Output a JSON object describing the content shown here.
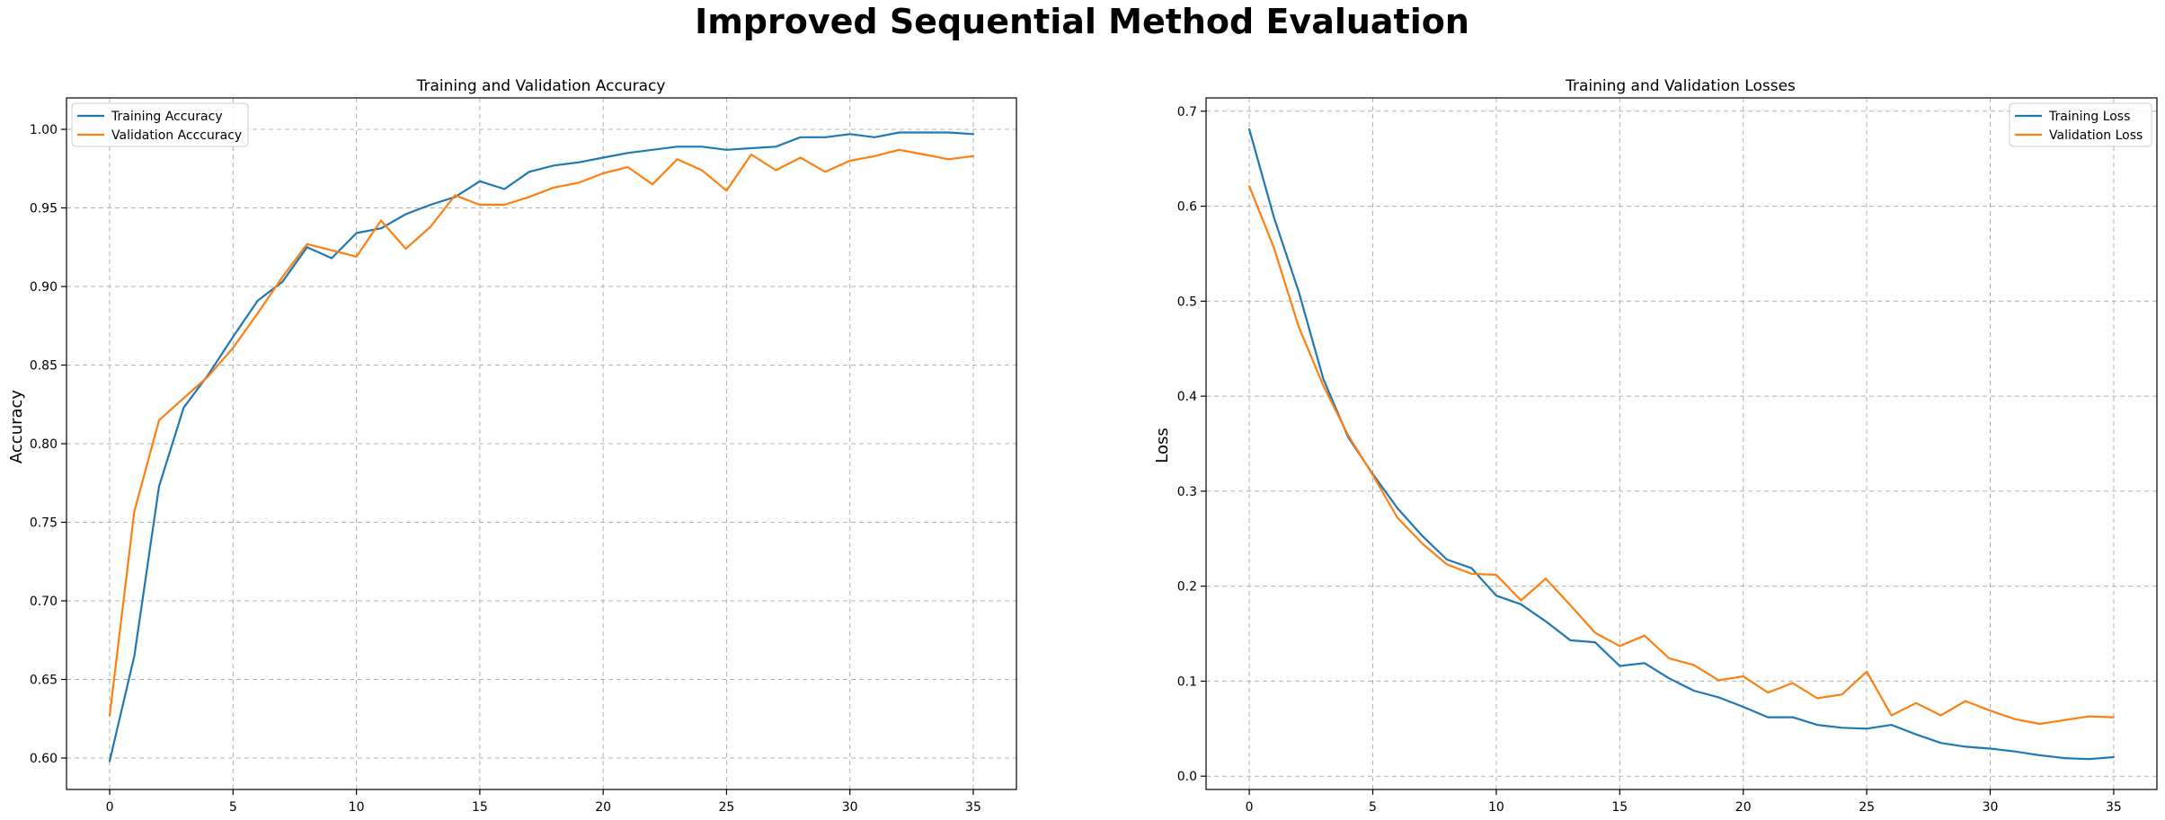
{
  "figure": {
    "suptitle": "Improved Sequential Method Evaluation"
  },
  "colors": {
    "training": "#1f77b4",
    "validation": "#ff7f0e"
  },
  "chart_data": [
    {
      "type": "line",
      "title": "Training and Validation Accuracy",
      "xlabel": "",
      "ylabel": "Accuracy",
      "xlim": [
        -1.75,
        36.75
      ],
      "ylim": [
        0.58,
        1.02
      ],
      "xticks": [
        0,
        5,
        10,
        15,
        20,
        25,
        30,
        35
      ],
      "yticks": [
        0.6,
        0.65,
        0.7,
        0.75,
        0.8,
        0.85,
        0.9,
        0.95,
        1.0
      ],
      "ytick_labels": [
        "0.60",
        "0.65",
        "0.70",
        "0.75",
        "0.80",
        "0.85",
        "0.90",
        "0.95",
        "1.00"
      ],
      "grid": true,
      "legend_position": "upper-left",
      "x": [
        0,
        1,
        2,
        3,
        4,
        5,
        6,
        7,
        8,
        9,
        10,
        11,
        12,
        13,
        14,
        15,
        16,
        17,
        18,
        19,
        20,
        21,
        22,
        23,
        24,
        25,
        26,
        27,
        28,
        29,
        30,
        31,
        32,
        33,
        34,
        35
      ],
      "series": [
        {
          "name": "Training Accuracy",
          "color": "#1f77b4",
          "values": [
            0.598,
            0.665,
            0.773,
            0.823,
            0.844,
            0.868,
            0.891,
            0.903,
            0.925,
            0.918,
            0.934,
            0.937,
            0.946,
            0.952,
            0.957,
            0.967,
            0.962,
            0.973,
            0.977,
            0.979,
            0.982,
            0.985,
            0.987,
            0.989,
            0.989,
            0.987,
            0.988,
            0.989,
            0.995,
            0.995,
            0.997,
            0.995,
            0.998,
            0.998,
            0.998,
            0.997
          ]
        },
        {
          "name": "Validation Acccuracy",
          "color": "#ff7f0e",
          "values": [
            0.627,
            0.757,
            0.815,
            0.829,
            0.843,
            0.861,
            0.883,
            0.906,
            0.927,
            0.923,
            0.919,
            0.942,
            0.924,
            0.938,
            0.958,
            0.952,
            0.952,
            0.957,
            0.963,
            0.966,
            0.972,
            0.976,
            0.965,
            0.981,
            0.974,
            0.961,
            0.984,
            0.974,
            0.982,
            0.973,
            0.98,
            0.983,
            0.987,
            0.984,
            0.981,
            0.983
          ]
        }
      ]
    },
    {
      "type": "line",
      "title": "Training and Validation Losses",
      "xlabel": "",
      "ylabel": "Loss",
      "xlim": [
        -1.75,
        36.75
      ],
      "ylim": [
        -0.014,
        0.714
      ],
      "xticks": [
        0,
        5,
        10,
        15,
        20,
        25,
        30,
        35
      ],
      "yticks": [
        0.0,
        0.1,
        0.2,
        0.3,
        0.4,
        0.5,
        0.6,
        0.7
      ],
      "ytick_labels": [
        "0.0",
        "0.1",
        "0.2",
        "0.3",
        "0.4",
        "0.5",
        "0.6",
        "0.7"
      ],
      "grid": true,
      "legend_position": "upper-right",
      "x": [
        0,
        1,
        2,
        3,
        4,
        5,
        6,
        7,
        8,
        9,
        10,
        11,
        12,
        13,
        14,
        15,
        16,
        17,
        18,
        19,
        20,
        21,
        22,
        23,
        24,
        25,
        26,
        27,
        28,
        29,
        30,
        31,
        32,
        33,
        34,
        35
      ],
      "series": [
        {
          "name": "Training Loss",
          "color": "#1f77b4",
          "values": [
            0.681,
            0.588,
            0.51,
            0.418,
            0.357,
            0.318,
            0.282,
            0.253,
            0.228,
            0.219,
            0.19,
            0.181,
            0.163,
            0.143,
            0.141,
            0.116,
            0.119,
            0.103,
            0.09,
            0.083,
            0.073,
            0.062,
            0.062,
            0.054,
            0.051,
            0.05,
            0.054,
            0.044,
            0.035,
            0.031,
            0.029,
            0.026,
            0.022,
            0.019,
            0.018,
            0.02
          ]
        },
        {
          "name": "Validation Loss",
          "color": "#ff7f0e",
          "values": [
            0.621,
            0.556,
            0.473,
            0.411,
            0.359,
            0.317,
            0.272,
            0.245,
            0.223,
            0.213,
            0.212,
            0.185,
            0.208,
            0.18,
            0.151,
            0.137,
            0.148,
            0.124,
            0.117,
            0.101,
            0.105,
            0.088,
            0.098,
            0.082,
            0.086,
            0.11,
            0.064,
            0.077,
            0.064,
            0.079,
            0.069,
            0.06,
            0.055,
            0.059,
            0.063,
            0.062
          ]
        }
      ]
    }
  ]
}
